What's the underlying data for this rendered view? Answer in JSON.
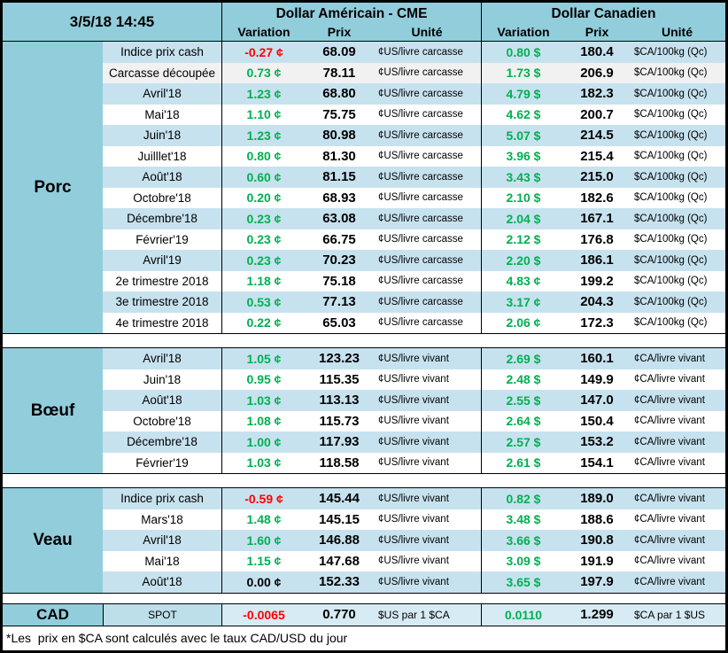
{
  "meta": {
    "timestamp": "3/5/18 14:45",
    "footnote": "*Les  prix en $CA sont calculés avec le taux CAD/USD du jour"
  },
  "colors": {
    "positive_green": "#00B050",
    "negative_red": "#FF0000",
    "header_cyan": "#92CDDC",
    "stripe_blue": "#C7E2EF",
    "row_gray": "#F1F1F2",
    "cad_row_blue": "#D6EBF3"
  },
  "header": {
    "us_title": "Dollar Américain - CME",
    "ca_title": "Dollar Canadien",
    "col_variation": "Variation",
    "col_prix": "Prix",
    "col_unite": "Unité"
  },
  "sections": [
    {
      "name": "Porc",
      "rows": [
        {
          "label": "Indice prix cash",
          "bg": "stripe",
          "us": {
            "var": "-0.27 ¢",
            "tone": "neg",
            "prix": "68.09",
            "unit": "¢US/livre carcasse"
          },
          "ca": {
            "var": "0.80 $",
            "tone": "pos",
            "prix": "180.4",
            "unit": "$CA/100kg (Qc)"
          }
        },
        {
          "label": "Carcasse découpée",
          "bg": "gray",
          "us": {
            "var": "0.73 ¢",
            "tone": "pos",
            "prix": "78.11",
            "unit": "¢US/livre carcasse"
          },
          "ca": {
            "var": "1.73 $",
            "tone": "pos",
            "prix": "206.9",
            "unit": "$CA/100kg (Qc)"
          }
        },
        {
          "label": "Avril'18",
          "bg": "stripe",
          "us": {
            "var": "1.23 ¢",
            "tone": "pos",
            "prix": "68.80",
            "unit": "¢US/livre carcasse"
          },
          "ca": {
            "var": "4.79 $",
            "tone": "pos",
            "prix": "182.3",
            "unit": "$CA/100kg (Qc)"
          }
        },
        {
          "label": "Mai'18",
          "bg": "white",
          "us": {
            "var": "1.10 ¢",
            "tone": "pos",
            "prix": "75.75",
            "unit": "¢US/livre carcasse"
          },
          "ca": {
            "var": "4.62 $",
            "tone": "pos",
            "prix": "200.7",
            "unit": "$CA/100kg (Qc)"
          }
        },
        {
          "label": "Juin'18",
          "bg": "stripe",
          "us": {
            "var": "1.23 ¢",
            "tone": "pos",
            "prix": "80.98",
            "unit": "¢US/livre carcasse"
          },
          "ca": {
            "var": "5.07 $",
            "tone": "pos",
            "prix": "214.5",
            "unit": "$CA/100kg (Qc)"
          }
        },
        {
          "label": "Juilllet'18",
          "bg": "white",
          "us": {
            "var": "0.80 ¢",
            "tone": "pos",
            "prix": "81.30",
            "unit": "¢US/livre carcasse"
          },
          "ca": {
            "var": "3.96 $",
            "tone": "pos",
            "prix": "215.4",
            "unit": "$CA/100kg (Qc)"
          }
        },
        {
          "label": "Août'18",
          "bg": "stripe",
          "us": {
            "var": "0.60 ¢",
            "tone": "pos",
            "prix": "81.15",
            "unit": "¢US/livre carcasse"
          },
          "ca": {
            "var": "3.43 $",
            "tone": "pos",
            "prix": "215.0",
            "unit": "$CA/100kg (Qc)"
          }
        },
        {
          "label": "Octobre'18",
          "bg": "white",
          "us": {
            "var": "0.20 ¢",
            "tone": "pos",
            "prix": "68.93",
            "unit": "¢US/livre carcasse"
          },
          "ca": {
            "var": "2.10 $",
            "tone": "pos",
            "prix": "182.6",
            "unit": "$CA/100kg (Qc)"
          }
        },
        {
          "label": "Décembre'18",
          "bg": "stripe",
          "us": {
            "var": "0.23 ¢",
            "tone": "pos",
            "prix": "63.08",
            "unit": "¢US/livre carcasse"
          },
          "ca": {
            "var": "2.04 $",
            "tone": "pos",
            "prix": "167.1",
            "unit": "$CA/100kg (Qc)"
          }
        },
        {
          "label": "Février'19",
          "bg": "white",
          "us": {
            "var": "0.23 ¢",
            "tone": "pos",
            "prix": "66.75",
            "unit": "¢US/livre carcasse"
          },
          "ca": {
            "var": "2.12 $",
            "tone": "pos",
            "prix": "176.8",
            "unit": "$CA/100kg (Qc)"
          }
        },
        {
          "label": "Avril'19",
          "bg": "stripe",
          "us": {
            "var": "0.23 ¢",
            "tone": "pos",
            "prix": "70.23",
            "unit": "¢US/livre carcasse"
          },
          "ca": {
            "var": "2.20 $",
            "tone": "pos",
            "prix": "186.1",
            "unit": "$CA/100kg (Qc)"
          }
        },
        {
          "label": "2e trimestre 2018",
          "bg": "white",
          "us": {
            "var": "1.18 ¢",
            "tone": "pos",
            "prix": "75.18",
            "unit": "¢US/livre carcasse"
          },
          "ca": {
            "var": "4.83 ¢",
            "tone": "pos",
            "prix": "199.2",
            "unit": "$CA/100kg (Qc)"
          }
        },
        {
          "label": "3e trimestre 2018",
          "bg": "stripe",
          "us": {
            "var": "0.53 ¢",
            "tone": "pos",
            "prix": "77.13",
            "unit": "¢US/livre carcasse"
          },
          "ca": {
            "var": "3.17 ¢",
            "tone": "pos",
            "prix": "204.3",
            "unit": "$CA/100kg (Qc)"
          }
        },
        {
          "label": "4e trimestre 2018",
          "bg": "white",
          "us": {
            "var": "0.22 ¢",
            "tone": "pos",
            "prix": "65.03",
            "unit": "¢US/livre carcasse"
          },
          "ca": {
            "var": "2.06 ¢",
            "tone": "pos",
            "prix": "172.3",
            "unit": "$CA/100kg (Qc)"
          }
        }
      ]
    },
    {
      "name": "Bœuf",
      "rows": [
        {
          "label": "Avril'18",
          "bg": "stripe",
          "us": {
            "var": "1.05 ¢",
            "tone": "pos",
            "prix": "123.23",
            "unit": "¢US/livre vivant"
          },
          "ca": {
            "var": "2.69 $",
            "tone": "pos",
            "prix": "160.1",
            "unit": "¢CA/livre vivant"
          }
        },
        {
          "label": "Juin'18",
          "bg": "white",
          "us": {
            "var": "0.95 ¢",
            "tone": "pos",
            "prix": "115.35",
            "unit": "¢US/livre vivant"
          },
          "ca": {
            "var": "2.48 $",
            "tone": "pos",
            "prix": "149.9",
            "unit": "¢CA/livre vivant"
          }
        },
        {
          "label": "Août'18",
          "bg": "stripe",
          "us": {
            "var": "1.03 ¢",
            "tone": "pos",
            "prix": "113.13",
            "unit": "¢US/livre vivant"
          },
          "ca": {
            "var": "2.55 $",
            "tone": "pos",
            "prix": "147.0",
            "unit": "¢CA/livre vivant"
          }
        },
        {
          "label": "Octobre'18",
          "bg": "white",
          "us": {
            "var": "1.08 ¢",
            "tone": "pos",
            "prix": "115.73",
            "unit": "¢US/livre vivant"
          },
          "ca": {
            "var": "2.64 $",
            "tone": "pos",
            "prix": "150.4",
            "unit": "¢CA/livre vivant"
          }
        },
        {
          "label": "Décembre'18",
          "bg": "stripe",
          "us": {
            "var": "1.00 ¢",
            "tone": "pos",
            "prix": "117.93",
            "unit": "¢US/livre vivant"
          },
          "ca": {
            "var": "2.57 $",
            "tone": "pos",
            "prix": "153.2",
            "unit": "¢CA/livre vivant"
          }
        },
        {
          "label": "Février'19",
          "bg": "white",
          "us": {
            "var": "1.03 ¢",
            "tone": "pos",
            "prix": "118.58",
            "unit": "¢US/livre vivant"
          },
          "ca": {
            "var": "2.61 $",
            "tone": "pos",
            "prix": "154.1",
            "unit": "¢CA/livre vivant"
          }
        }
      ]
    },
    {
      "name": "Veau",
      "rows": [
        {
          "label": "Indice prix cash",
          "bg": "stripe",
          "us": {
            "var": "-0.59 ¢",
            "tone": "neg",
            "prix": "145.44",
            "unit": "¢US/livre vivant"
          },
          "ca": {
            "var": "0.82 $",
            "tone": "pos",
            "prix": "189.0",
            "unit": "¢CA/livre vivant"
          }
        },
        {
          "label": "Mars'18",
          "bg": "white",
          "us": {
            "var": "1.48 ¢",
            "tone": "pos",
            "prix": "145.15",
            "unit": "¢US/livre vivant"
          },
          "ca": {
            "var": "3.48 $",
            "tone": "pos",
            "prix": "188.6",
            "unit": "¢CA/livre vivant"
          }
        },
        {
          "label": "Avril'18",
          "bg": "stripe",
          "us": {
            "var": "1.60 ¢",
            "tone": "pos",
            "prix": "146.88",
            "unit": "¢US/livre vivant"
          },
          "ca": {
            "var": "3.66 $",
            "tone": "pos",
            "prix": "190.8",
            "unit": "¢CA/livre vivant"
          }
        },
        {
          "label": "Mai'18",
          "bg": "white",
          "us": {
            "var": "1.15 ¢",
            "tone": "pos",
            "prix": "147.68",
            "unit": "¢US/livre vivant"
          },
          "ca": {
            "var": "3.09 $",
            "tone": "pos",
            "prix": "191.9",
            "unit": "¢CA/livre vivant"
          }
        },
        {
          "label": "Août'18",
          "bg": "stripe",
          "us": {
            "var": "0.00 ¢",
            "tone": "zero",
            "prix": "152.33",
            "unit": "¢US/livre vivant"
          },
          "ca": {
            "var": "3.65 $",
            "tone": "pos",
            "prix": "197.9",
            "unit": "¢CA/livre vivant"
          }
        }
      ]
    }
  ],
  "cad": {
    "name": "CAD",
    "label": "SPOT",
    "us_var": "-0.0065",
    "us_var_tone": "neg",
    "us_prix": "0.770",
    "us_unit": "$US par 1 $CA",
    "ca_var": "0.0110",
    "ca_var_tone": "pos",
    "ca_prix": "1.299",
    "ca_unit": "$CA par 1 $US"
  }
}
